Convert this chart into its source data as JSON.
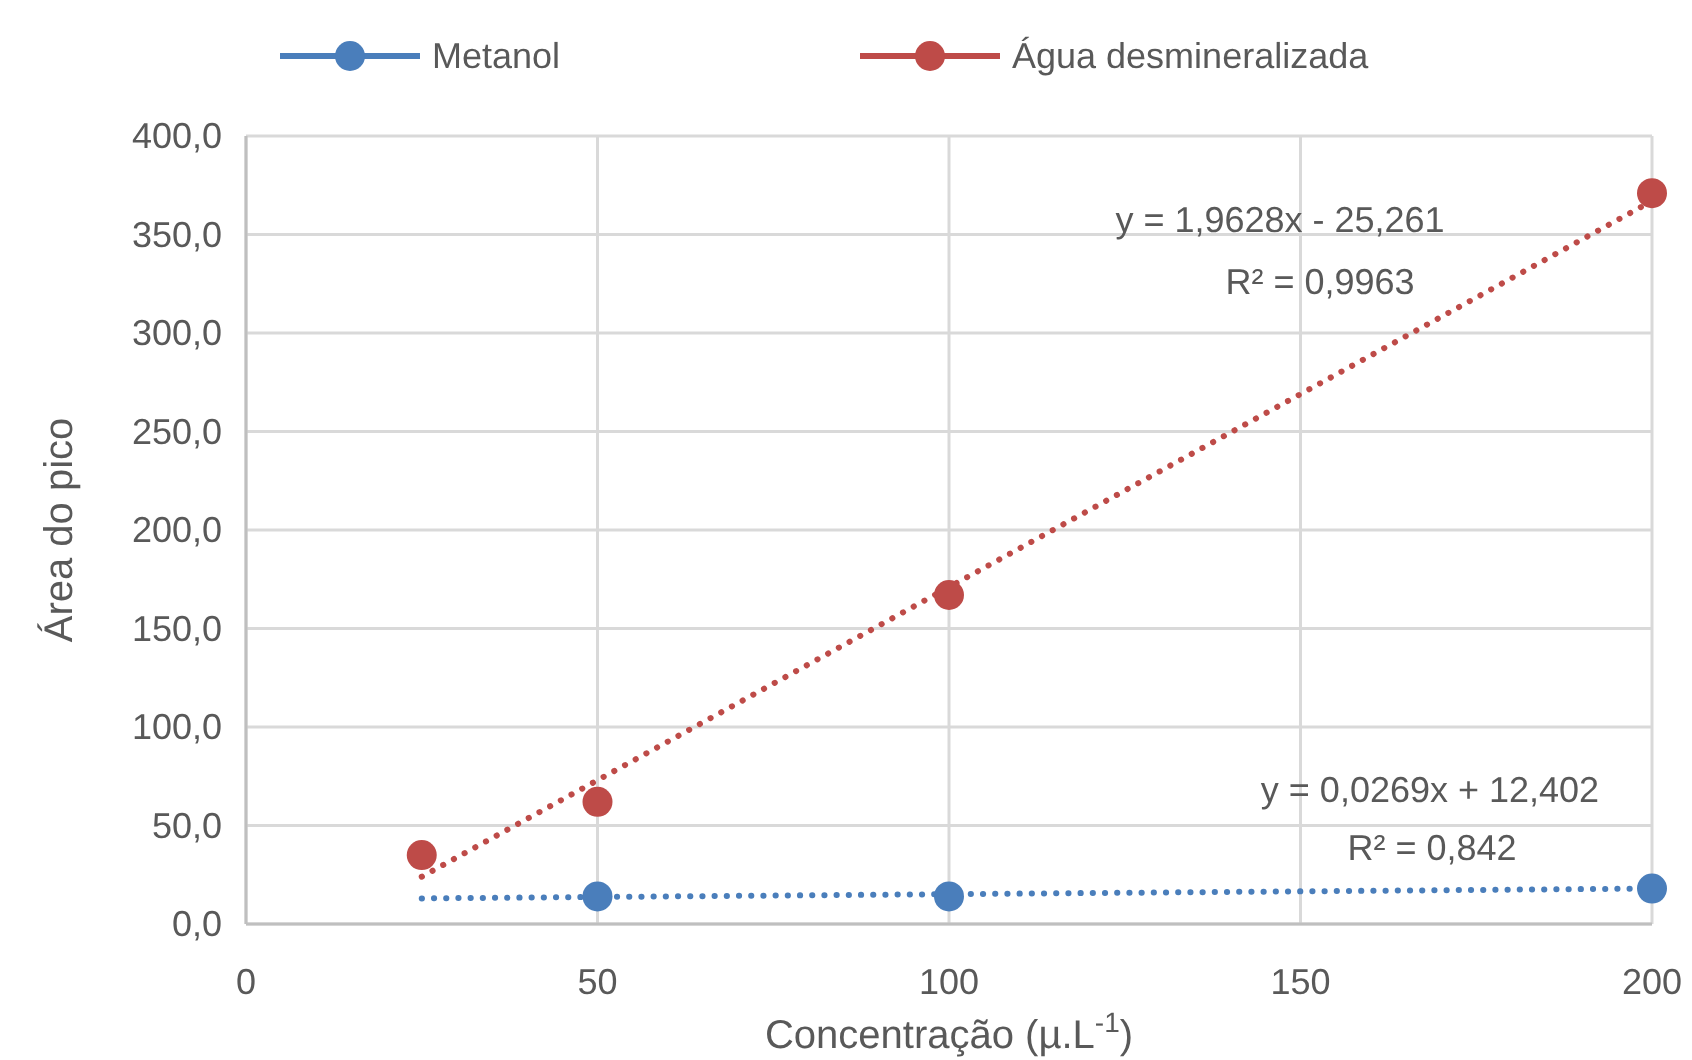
{
  "chart_data": {
    "type": "scatter",
    "xlabel": "Concentração (µ.L$^{-1}$)",
    "ylabel": "Área do pico",
    "xlim": [
      0,
      200
    ],
    "xticks": [
      0,
      50,
      100,
      150,
      200
    ],
    "ylim": [
      0,
      400
    ],
    "yticks": [
      {
        "value": 0,
        "label": "0,0"
      },
      {
        "value": 50,
        "label": "50,0"
      },
      {
        "value": 100,
        "label": "100,0"
      },
      {
        "value": 150,
        "label": "150,0"
      },
      {
        "value": 200,
        "label": "200,0"
      },
      {
        "value": 250,
        "label": "250,0"
      },
      {
        "value": 300,
        "label": "300,0"
      },
      {
        "value": 350,
        "label": "350,0"
      },
      {
        "value": 400,
        "label": "400,0"
      }
    ],
    "grid": true,
    "legend": "top",
    "marker": "circle",
    "series": [
      {
        "name": "Metanol",
        "color": "#4a7ebb",
        "x": [
          50,
          100,
          200
        ],
        "values": [
          14,
          14,
          18
        ]
      },
      {
        "name": "Água desmineralizada",
        "color": "#be4b48",
        "x": [
          25,
          50,
          100,
          200
        ],
        "values": [
          35,
          62,
          167,
          371
        ]
      },
      {
        "type": "line",
        "color": "#4a7ebb",
        "line_style": "dotted",
        "marker": "none",
        "x": [
          25,
          200
        ],
        "values": [
          13,
          18
        ]
      },
      {
        "type": "line",
        "color": "#be4b48",
        "line_style": "dotted",
        "marker": "none",
        "x": [
          25,
          200
        ],
        "values": [
          24,
          367
        ]
      }
    ],
    "annotations": [
      "y = 1,9628x - 25,261",
      "R² = 0,9963",
      "y = 0,0269x + 12,402",
      "R² = 0,842"
    ]
  }
}
